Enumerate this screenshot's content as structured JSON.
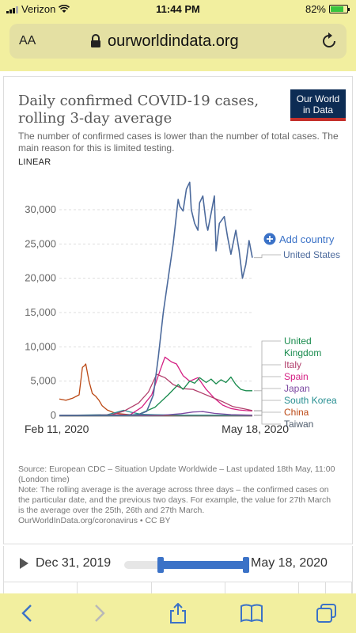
{
  "status": {
    "carrier": "Verizon",
    "time": "11:44 PM",
    "battery": "82%"
  },
  "browser": {
    "text_size_label": "AA",
    "host": "ourworldindata.org"
  },
  "card": {
    "title": "Daily confirmed COVID-19 cases, rolling 3-day average",
    "logo_line1": "Our World",
    "logo_line2": "in Data",
    "subtitle": "The number of confirmed cases is lower than the number of total cases. The main reason for this is limited testing.",
    "scale_label": "LINEAR",
    "add_country": "Add country",
    "source_text": "Source: European CDC – Situation Update Worldwide – Last updated 18th May, 11:00 (London time)",
    "note_text": "Note: The rolling average is the average across three days – the confirmed cases on the particular date, and the previous two days. For example, the value for 27th March is the average over the 25th, 26th and 27th March.",
    "credit_text": "OurWorldInData.org/coronavirus • CC BY"
  },
  "timeline": {
    "start": "Dec 31, 2019",
    "end": "May 18, 2020"
  },
  "chart_data": {
    "type": "line",
    "title": "Daily confirmed COVID-19 cases, rolling 3-day average",
    "subtitle": "The number of confirmed cases is lower than the number of total cases. The main reason for this is limited testing.",
    "ylim": [
      0,
      30000
    ],
    "yticks": [
      0,
      5000,
      10000,
      15000,
      20000,
      25000,
      30000
    ],
    "ytick_labels": [
      "0",
      "5,000",
      "10,000",
      "15,000",
      "20,000",
      "25,000",
      "30,000"
    ],
    "xlabels": [
      "Feb 11, 2020",
      "May 18, 2020"
    ],
    "x_note": "daily, Jan 22 2020 – May 18 2020",
    "x_start": "2020-01-22",
    "grid": true,
    "legend": "right",
    "series": [
      {
        "name": "United States",
        "color": "#4c6a9c",
        "x": [
          "2020-01-22",
          "2020-02-15",
          "2020-03-01",
          "2020-03-10",
          "2020-03-15",
          "2020-03-19",
          "2020-03-22",
          "2020-03-25",
          "2020-03-28",
          "2020-03-31",
          "2020-04-03",
          "2020-04-04",
          "2020-04-06",
          "2020-04-08",
          "2020-04-10",
          "2020-04-11",
          "2020-04-13",
          "2020-04-15",
          "2020-04-16",
          "2020-04-18",
          "2020-04-20",
          "2020-04-21",
          "2020-04-23",
          "2020-04-25",
          "2020-04-26",
          "2020-04-28",
          "2020-05-01",
          "2020-05-03",
          "2020-05-05",
          "2020-05-08",
          "2020-05-10",
          "2020-05-12",
          "2020-05-14",
          "2020-05-16",
          "2020-05-18"
        ],
        "values": [
          0,
          0,
          10,
          100,
          600,
          3000,
          8500,
          15000,
          20000,
          25000,
          31500,
          30500,
          29800,
          33000,
          34000,
          30000,
          28000,
          27000,
          31000,
          32000,
          28000,
          27000,
          29500,
          32000,
          24000,
          28000,
          29000,
          26000,
          23500,
          27000,
          24000,
          20000,
          22000,
          25500,
          23000
        ]
      },
      {
        "name": "United Kingdom",
        "color": "#178a4c",
        "x": [
          "2020-01-22",
          "2020-03-01",
          "2020-03-10",
          "2020-03-20",
          "2020-03-28",
          "2020-04-03",
          "2020-04-06",
          "2020-04-10",
          "2020-04-13",
          "2020-04-16",
          "2020-04-20",
          "2020-04-23",
          "2020-04-26",
          "2020-04-29",
          "2020-05-02",
          "2020-05-05",
          "2020-05-08",
          "2020-05-11",
          "2020-05-14",
          "2020-05-18"
        ],
        "values": [
          0,
          10,
          150,
          1200,
          3000,
          4500,
          3800,
          5000,
          4700,
          5500,
          4800,
          5300,
          4600,
          5200,
          4800,
          5600,
          4500,
          3800,
          3600,
          3600
        ]
      },
      {
        "name": "Italy",
        "color": "#b13e6b",
        "x": [
          "2020-01-22",
          "2020-02-22",
          "2020-03-01",
          "2020-03-10",
          "2020-03-16",
          "2020-03-21",
          "2020-03-26",
          "2020-03-31",
          "2020-04-06",
          "2020-04-12",
          "2020-04-18",
          "2020-04-24",
          "2020-04-30",
          "2020-05-06",
          "2020-05-12",
          "2020-05-18"
        ],
        "values": [
          0,
          50,
          600,
          1800,
          3400,
          6000,
          5500,
          4500,
          3900,
          3800,
          3200,
          2600,
          2000,
          1300,
          1000,
          700
        ]
      },
      {
        "name": "Spain",
        "color": "#d41f83",
        "x": [
          "2020-01-22",
          "2020-03-05",
          "2020-03-12",
          "2020-03-18",
          "2020-03-23",
          "2020-03-26",
          "2020-03-30",
          "2020-04-02",
          "2020-04-06",
          "2020-04-10",
          "2020-04-15",
          "2020-04-20",
          "2020-04-25",
          "2020-04-30",
          "2020-05-05",
          "2020-05-10",
          "2020-05-14",
          "2020-05-18"
        ],
        "values": [
          0,
          100,
          1200,
          3000,
          6500,
          8500,
          7800,
          7500,
          5800,
          5000,
          5500,
          3800,
          2500,
          1500,
          1000,
          800,
          700,
          650
        ]
      },
      {
        "name": "Japan",
        "color": "#7d4aa2",
        "x": [
          "2020-01-22",
          "2020-03-25",
          "2020-04-05",
          "2020-04-12",
          "2020-04-18",
          "2020-04-25",
          "2020-05-05",
          "2020-05-18"
        ],
        "values": [
          0,
          50,
          250,
          500,
          550,
          300,
          120,
          40
        ]
      },
      {
        "name": "South Korea",
        "color": "#268e91",
        "x": [
          "2020-01-22",
          "2020-02-20",
          "2020-02-25",
          "2020-03-01",
          "2020-03-05",
          "2020-03-12",
          "2020-03-20",
          "2020-04-05",
          "2020-05-18"
        ],
        "values": [
          0,
          100,
          400,
          750,
          500,
          150,
          100,
          50,
          20
        ]
      },
      {
        "name": "China",
        "color": "#bb4814",
        "x": [
          "2020-01-22",
          "2020-01-26",
          "2020-01-30",
          "2020-02-03",
          "2020-02-05",
          "2020-02-06",
          "2020-02-07",
          "2020-02-09",
          "2020-02-11",
          "2020-02-13",
          "2020-02-15",
          "2020-02-17",
          "2020-02-20",
          "2020-02-25",
          "2020-03-05",
          "2020-03-20",
          "2020-05-18"
        ],
        "values": [
          2400,
          2200,
          2500,
          3000,
          7000,
          7200,
          7500,
          5000,
          3200,
          2800,
          2200,
          1400,
          800,
          300,
          100,
          20,
          5
        ]
      },
      {
        "name": "Taiwan",
        "color": "#4d5a6a",
        "x": [
          "2020-01-22",
          "2020-05-18"
        ],
        "values": [
          0,
          2
        ]
      }
    ]
  }
}
